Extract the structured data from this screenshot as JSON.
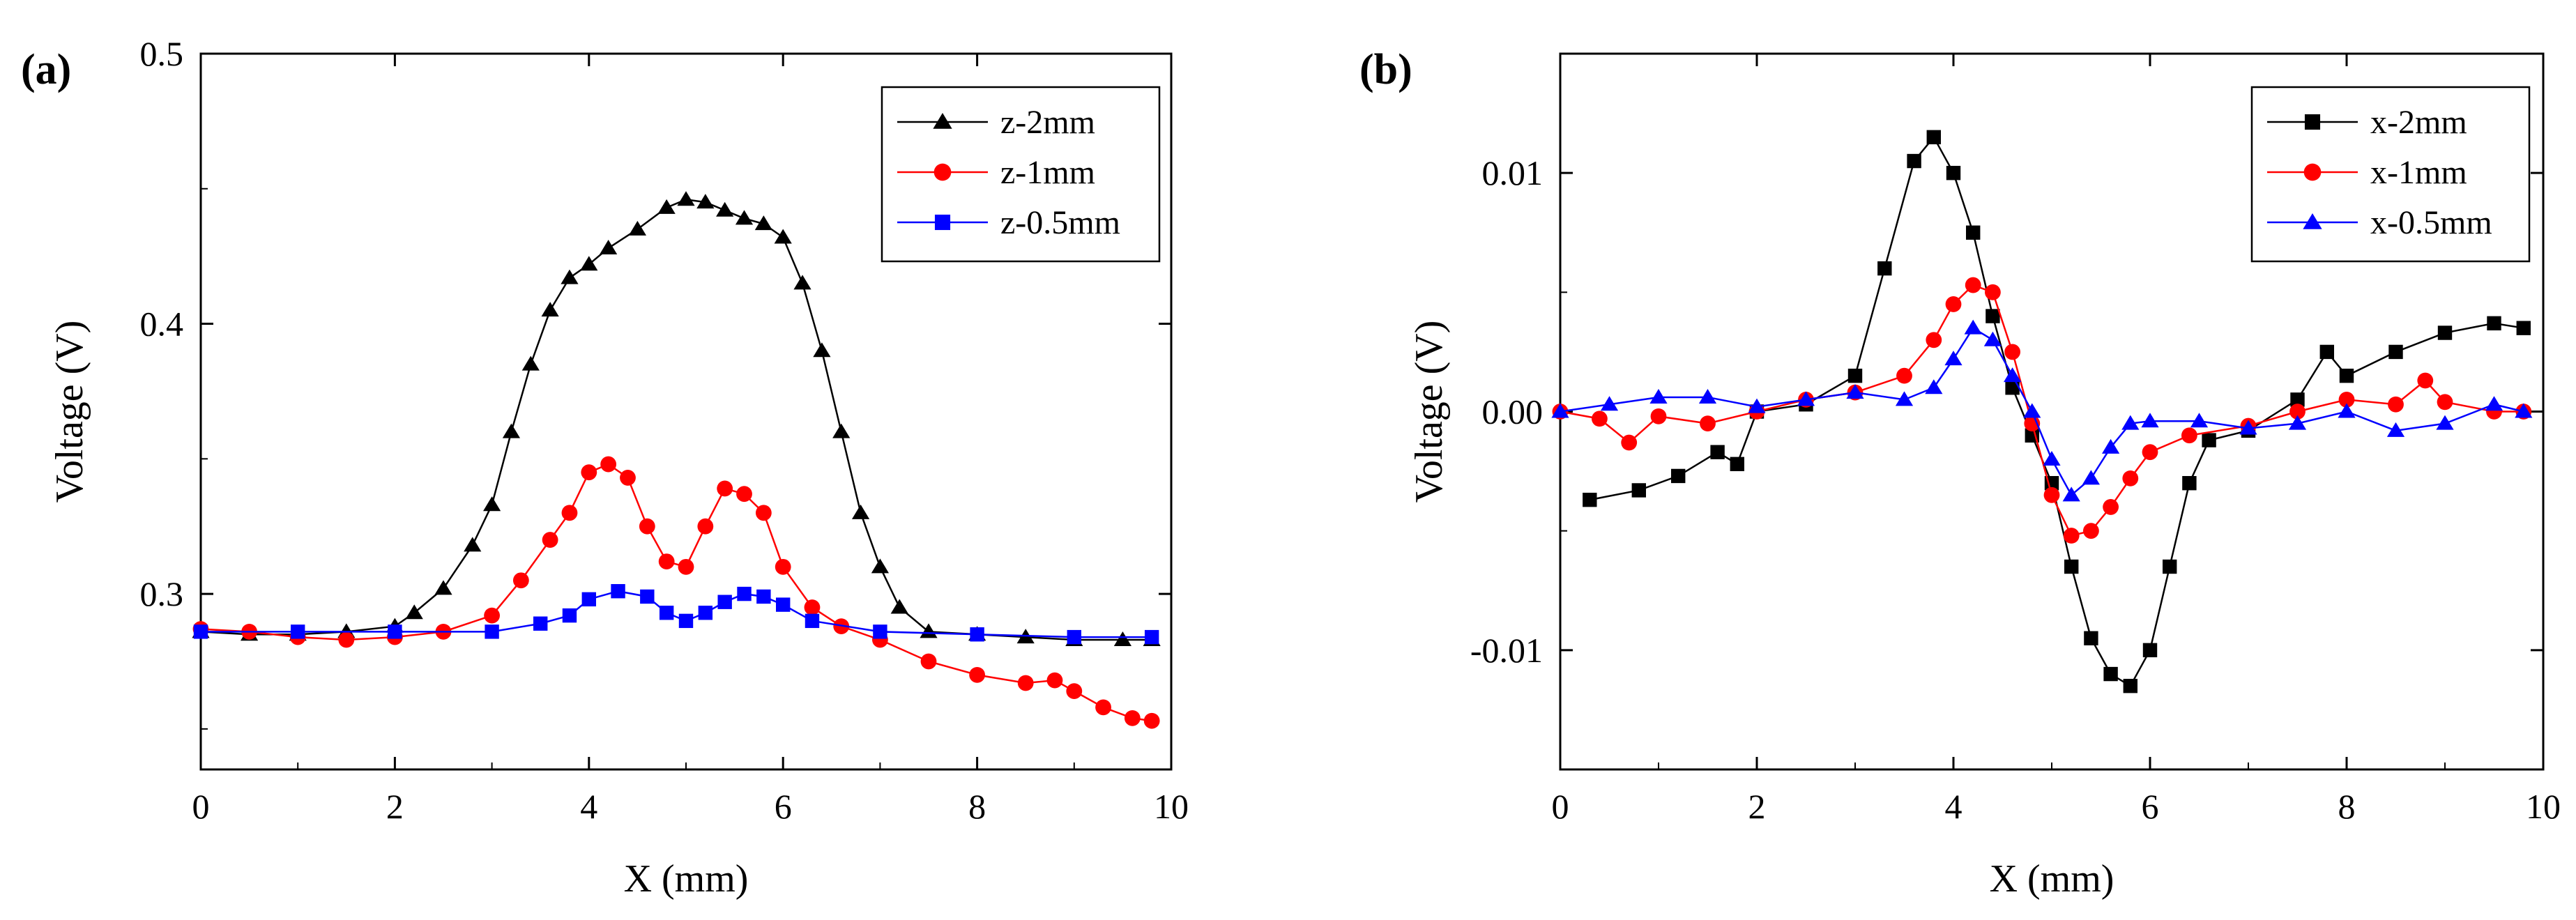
{
  "chart_data": [
    {
      "panel_label": "(a)",
      "type": "line",
      "xlabel": "X (mm)",
      "ylabel": "Voltage (V)",
      "xlim": [
        0,
        10
      ],
      "ylim": [
        0.235,
        0.5
      ],
      "xticks": [
        0,
        2,
        4,
        6,
        8,
        10
      ],
      "yticks": [
        0.3,
        0.4,
        0.5
      ],
      "xtick_labels": [
        "0",
        "2",
        "4",
        "6",
        "8",
        "10"
      ],
      "ytick_labels": [
        "0.3",
        "0.4",
        "0.5"
      ],
      "legend_position": "top-right",
      "series": [
        {
          "name": "z-2mm",
          "color": "#000000",
          "marker": "triangle",
          "x": [
            0,
            0.5,
            1,
            1.5,
            2,
            2.2,
            2.5,
            2.8,
            3,
            3.2,
            3.4,
            3.6,
            3.8,
            4,
            4.2,
            4.5,
            4.8,
            5,
            5.2,
            5.4,
            5.6,
            5.8,
            6,
            6.2,
            6.4,
            6.6,
            6.8,
            7,
            7.2,
            7.5,
            8,
            8.5,
            9,
            9.5,
            9.8
          ],
          "y": [
            0.286,
            0.285,
            0.285,
            0.286,
            0.288,
            0.293,
            0.302,
            0.318,
            0.333,
            0.36,
            0.385,
            0.405,
            0.417,
            0.422,
            0.428,
            0.435,
            0.443,
            0.446,
            0.445,
            0.442,
            0.439,
            0.437,
            0.432,
            0.415,
            0.39,
            0.36,
            0.33,
            0.31,
            0.295,
            0.286,
            0.285,
            0.284,
            0.283,
            0.283,
            0.283
          ]
        },
        {
          "name": "z-1mm",
          "color": "#ff0000",
          "marker": "circle",
          "x": [
            0,
            0.5,
            1,
            1.5,
            2,
            2.5,
            3,
            3.3,
            3.6,
            3.8,
            4,
            4.2,
            4.4,
            4.6,
            4.8,
            5,
            5.2,
            5.4,
            5.6,
            5.8,
            6,
            6.3,
            6.6,
            7,
            7.5,
            8,
            8.5,
            8.8,
            9,
            9.3,
            9.6,
            9.8
          ],
          "y": [
            0.287,
            0.286,
            0.284,
            0.283,
            0.284,
            0.286,
            0.292,
            0.305,
            0.32,
            0.33,
            0.345,
            0.348,
            0.343,
            0.325,
            0.312,
            0.31,
            0.325,
            0.339,
            0.337,
            0.33,
            0.31,
            0.295,
            0.288,
            0.283,
            0.275,
            0.27,
            0.267,
            0.268,
            0.264,
            0.258,
            0.254,
            0.253
          ]
        },
        {
          "name": "z-0.5mm",
          "color": "#0000ff",
          "marker": "square",
          "x": [
            0,
            1,
            2,
            3,
            3.5,
            3.8,
            4,
            4.3,
            4.6,
            4.8,
            5,
            5.2,
            5.4,
            5.6,
            5.8,
            6,
            6.3,
            7,
            8,
            9,
            9.8
          ],
          "y": [
            0.286,
            0.286,
            0.286,
            0.286,
            0.289,
            0.292,
            0.298,
            0.301,
            0.299,
            0.293,
            0.29,
            0.293,
            0.297,
            0.3,
            0.299,
            0.296,
            0.29,
            0.286,
            0.285,
            0.284,
            0.284
          ]
        }
      ]
    },
    {
      "panel_label": "(b)",
      "type": "line",
      "xlabel": "X (mm)",
      "ylabel": "Voltage (V)",
      "xlim": [
        0,
        10
      ],
      "ylim": [
        -0.015,
        0.015
      ],
      "xticks": [
        0,
        2,
        4,
        6,
        8,
        10
      ],
      "yticks": [
        -0.01,
        0.0,
        0.01
      ],
      "xtick_labels": [
        "0",
        "2",
        "4",
        "6",
        "8",
        "10"
      ],
      "ytick_labels": [
        "-0.01",
        "0.00",
        "0.01"
      ],
      "legend_position": "top-right",
      "series": [
        {
          "name": "x-2mm",
          "color": "#000000",
          "marker": "square",
          "x": [
            0.3,
            0.8,
            1.2,
            1.6,
            1.8,
            2.0,
            2.5,
            3.0,
            3.3,
            3.6,
            3.8,
            4.0,
            4.2,
            4.4,
            4.6,
            4.8,
            5.0,
            5.2,
            5.4,
            5.6,
            5.8,
            6.0,
            6.2,
            6.4,
            6.6,
            7.0,
            7.5,
            7.8,
            8.0,
            8.5,
            9.0,
            9.5,
            9.8
          ],
          "y": [
            -0.0037,
            -0.0033,
            -0.0027,
            -0.0017,
            -0.0022,
            0.0,
            0.0003,
            0.0015,
            0.006,
            0.0105,
            0.0115,
            0.01,
            0.0075,
            0.004,
            0.001,
            -0.001,
            -0.003,
            -0.0065,
            -0.0095,
            -0.011,
            -0.0115,
            -0.01,
            -0.0065,
            -0.003,
            -0.0012,
            -0.0008,
            0.0005,
            0.0025,
            0.0015,
            0.0025,
            0.0033,
            0.0037,
            0.0035
          ]
        },
        {
          "name": "x-1mm",
          "color": "#ff0000",
          "marker": "circle",
          "x": [
            0,
            0.4,
            0.7,
            1.0,
            1.5,
            2.0,
            2.5,
            3.0,
            3.5,
            3.8,
            4.0,
            4.2,
            4.4,
            4.6,
            4.8,
            5.0,
            5.2,
            5.4,
            5.6,
            5.8,
            6.0,
            6.4,
            7.0,
            7.5,
            8.0,
            8.5,
            8.8,
            9.0,
            9.5,
            9.8
          ],
          "y": [
            0.0,
            -0.0003,
            -0.0013,
            -0.0002,
            -0.0005,
            0.0,
            0.0005,
            0.0008,
            0.0015,
            0.003,
            0.0045,
            0.0053,
            0.005,
            0.0025,
            -0.0005,
            -0.0035,
            -0.0052,
            -0.005,
            -0.004,
            -0.0028,
            -0.0017,
            -0.001,
            -0.0006,
            0.0,
            0.0005,
            0.0003,
            0.0013,
            0.0004,
            0.0,
            0.0
          ]
        },
        {
          "name": "x-0.5mm",
          "color": "#0000ff",
          "marker": "triangle",
          "x": [
            0,
            0.5,
            1.0,
            1.5,
            2.0,
            2.5,
            3.0,
            3.5,
            3.8,
            4.0,
            4.2,
            4.4,
            4.6,
            4.8,
            5.0,
            5.2,
            5.4,
            5.6,
            5.8,
            6.0,
            6.5,
            7.0,
            7.5,
            8.0,
            8.5,
            9.0,
            9.5,
            9.8
          ],
          "y": [
            0.0,
            0.0003,
            0.0006,
            0.0006,
            0.0002,
            0.0005,
            0.0008,
            0.0005,
            0.001,
            0.0022,
            0.0035,
            0.003,
            0.0015,
            0.0,
            -0.002,
            -0.0035,
            -0.0028,
            -0.0015,
            -0.0005,
            -0.0004,
            -0.0004,
            -0.0007,
            -0.0005,
            0.0,
            -0.0008,
            -0.0005,
            0.0003,
            0.0
          ]
        }
      ]
    }
  ]
}
